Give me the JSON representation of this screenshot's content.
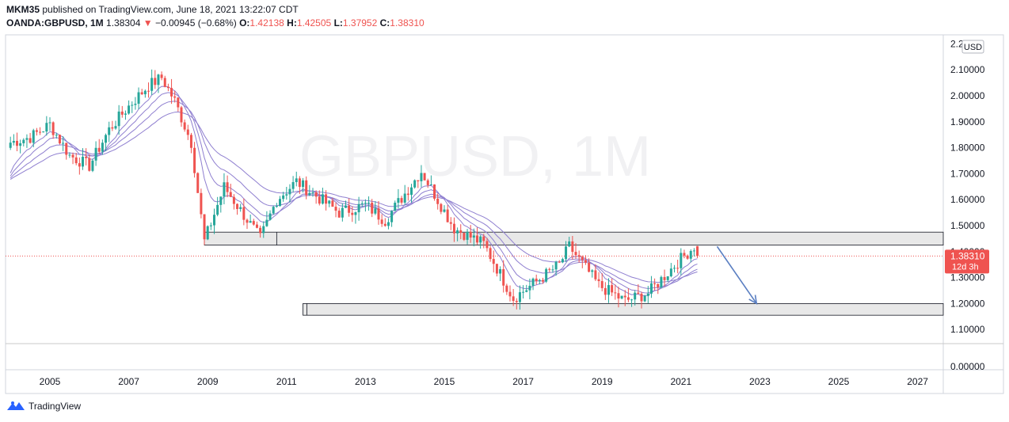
{
  "header": {
    "author": "MKM35",
    "published": "published on TradingView.com, June 18, 2021 13:22:07 CDT",
    "symbol": "OANDA:GBPUSD, 1M",
    "last": "1.38304",
    "change": "−0.00945 (−0.68%)",
    "open_label": "O:",
    "open": "1.42138",
    "high_label": "H:",
    "high": "1.42505",
    "low_label": "L:",
    "low": "1.37952",
    "close_label": "C:",
    "close": "1.38310",
    "down_arrow": "▼"
  },
  "footer": {
    "brand": "TradingView",
    "logo_icon": "tradingview-logo-icon"
  },
  "colors": {
    "up": "#26a69a",
    "down": "#ef5350",
    "ma": "#8f7fd0",
    "arrow": "#5b7fc2",
    "zone_fill": "#e8e8e8",
    "price_tag": "#ef5350"
  },
  "chart_data": {
    "type": "candlestick",
    "title": "",
    "watermark": "GBPUSD, 1M",
    "currency": "USD",
    "y_ticks": [
      "2.10000",
      "2.00000",
      "1.90000",
      "1.80000",
      "1.70000",
      "1.60000",
      "1.50000",
      "1.40000",
      "1.30000",
      "1.20000",
      "1.10000",
      "0.00000"
    ],
    "y_top_partial": "2.2",
    "x_ticks": [
      "2005",
      "2007",
      "2009",
      "2011",
      "2013",
      "2015",
      "2017",
      "2019",
      "2021",
      "2023",
      "2025",
      "2027"
    ],
    "last_price": "1.38310",
    "countdown": "12d 3h",
    "close_series": [
      {
        "date": "2004-01",
        "close": 1.82
      },
      {
        "date": "2004-07",
        "close": 1.84
      },
      {
        "date": "2005-01",
        "close": 1.89
      },
      {
        "date": "2005-07",
        "close": 1.77
      },
      {
        "date": "2006-01",
        "close": 1.73
      },
      {
        "date": "2006-07",
        "close": 1.87
      },
      {
        "date": "2007-01",
        "close": 1.96
      },
      {
        "date": "2007-07",
        "close": 2.04
      },
      {
        "date": "2007-11",
        "close": 2.07
      },
      {
        "date": "2008-03",
        "close": 1.98
      },
      {
        "date": "2008-08",
        "close": 1.82
      },
      {
        "date": "2008-12",
        "close": 1.44
      },
      {
        "date": "2009-06",
        "close": 1.65
      },
      {
        "date": "2010-05",
        "close": 1.45
      },
      {
        "date": "2010-10",
        "close": 1.6
      },
      {
        "date": "2011-04",
        "close": 1.67
      },
      {
        "date": "2012-05",
        "close": 1.55
      },
      {
        "date": "2013-01",
        "close": 1.58
      },
      {
        "date": "2013-07",
        "close": 1.52
      },
      {
        "date": "2014-06",
        "close": 1.71
      },
      {
        "date": "2015-04",
        "close": 1.49
      },
      {
        "date": "2016-01",
        "close": 1.43
      },
      {
        "date": "2016-10",
        "close": 1.22
      },
      {
        "date": "2017-12",
        "close": 1.35
      },
      {
        "date": "2018-03",
        "close": 1.42
      },
      {
        "date": "2018-12",
        "close": 1.27
      },
      {
        "date": "2019-08",
        "close": 1.21
      },
      {
        "date": "2020-03",
        "close": 1.24
      },
      {
        "date": "2020-12",
        "close": 1.36
      },
      {
        "date": "2021-05",
        "close": 1.42
      },
      {
        "date": "2021-06",
        "close": 1.383
      }
    ],
    "moving_averages": 4,
    "resistance_zone": {
      "from": "2008-12",
      "to": "2027-06",
      "low": 1.425,
      "high": 1.475
    },
    "support_zone": {
      "from": "2011-06",
      "to": "2027-06",
      "low": 1.155,
      "high": 1.2
    },
    "projection_arrow": {
      "from_date": "2021-12",
      "from_price": 1.42,
      "to_date": "2022-12",
      "to_price": 1.2
    }
  }
}
